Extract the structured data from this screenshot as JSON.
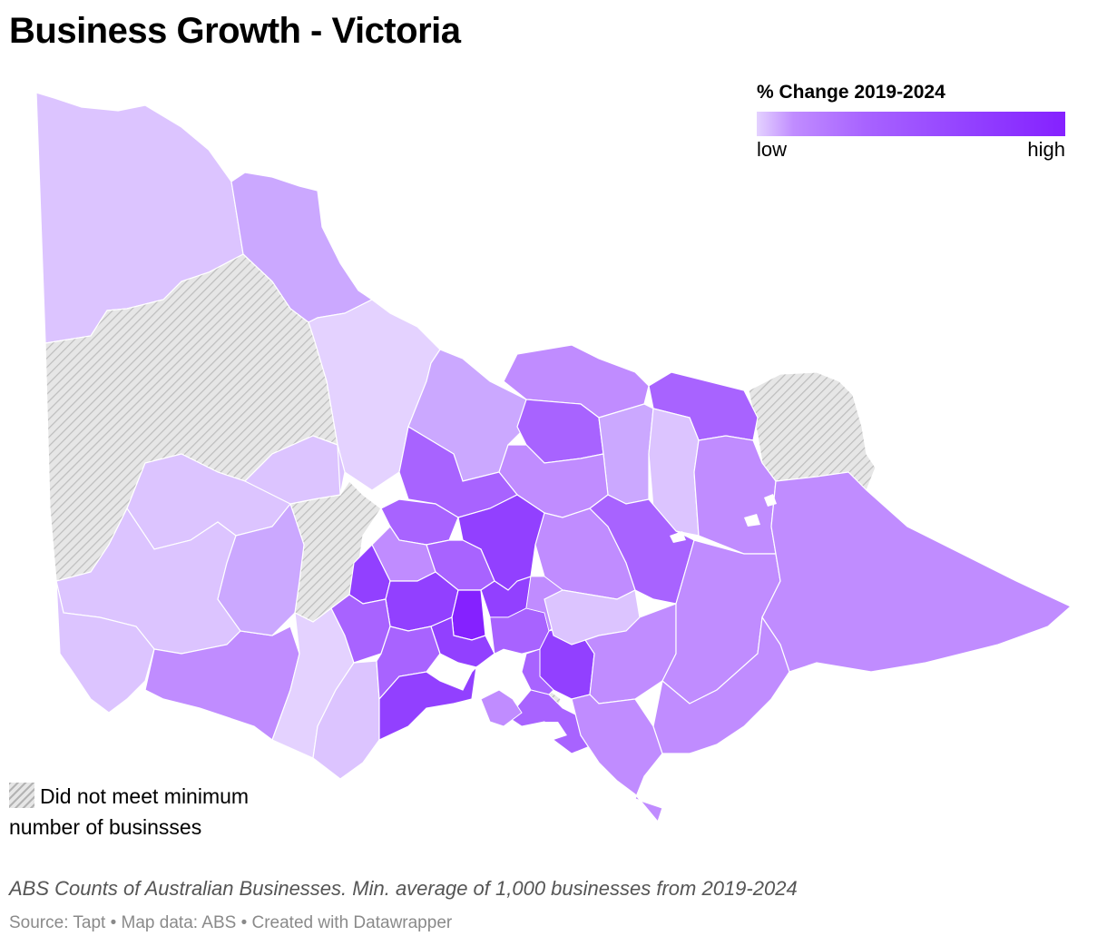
{
  "title": "Business Growth - Victoria",
  "legend": {
    "title": "% Change 2019-2024",
    "low_label": "low",
    "high_label": "high",
    "colors": [
      "#e4d2ff",
      "#dcc4ff",
      "#cba8ff",
      "#c08cff",
      "#a863ff",
      "#9240ff",
      "#8521ff"
    ],
    "no_data_color": "#e3e3e3"
  },
  "no_data_note": "Did not meet minimum number of businsses",
  "notes": "ABS Counts of Australian Businesses. Min. average of 1,000 businesses from 2019-2024",
  "source": "Source: Tapt • Map data: ABS • Created with Datawrapper"
}
